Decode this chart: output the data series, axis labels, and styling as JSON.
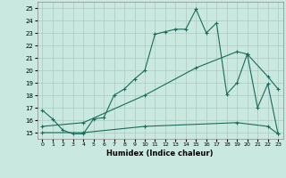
{
  "xlabel": "Humidex (Indice chaleur)",
  "background_color": "#c8e8e0",
  "grid_color": "#b0c8c0",
  "line_color": "#1a6b5a",
  "xlim": [
    -0.5,
    23.5
  ],
  "ylim": [
    14.5,
    25.5
  ],
  "xticks": [
    0,
    1,
    2,
    3,
    4,
    5,
    6,
    7,
    8,
    9,
    10,
    11,
    12,
    13,
    14,
    15,
    16,
    17,
    18,
    19,
    20,
    21,
    22,
    23
  ],
  "yticks": [
    15,
    16,
    17,
    18,
    19,
    20,
    21,
    22,
    23,
    24,
    25
  ],
  "line1_x": [
    0,
    1,
    2,
    3,
    4,
    5,
    6,
    7,
    8,
    9,
    10,
    11,
    12,
    13,
    14,
    15,
    16,
    17,
    18,
    19,
    20,
    21,
    22,
    23
  ],
  "line1_y": [
    16.8,
    16.1,
    15.2,
    14.9,
    14.9,
    16.1,
    16.2,
    18.0,
    18.5,
    19.3,
    20.0,
    22.9,
    23.1,
    23.3,
    23.3,
    24.9,
    23.0,
    23.8,
    18.1,
    19.0,
    21.3,
    17.0,
    18.9,
    14.9
  ],
  "line2_x": [
    0,
    4,
    10,
    15,
    19,
    20,
    22,
    23
  ],
  "line2_y": [
    15.5,
    15.8,
    18.0,
    20.2,
    21.5,
    21.3,
    19.5,
    18.5
  ],
  "line3_x": [
    0,
    4,
    10,
    19,
    22,
    23
  ],
  "line3_y": [
    15.0,
    15.0,
    15.5,
    15.8,
    15.5,
    14.9
  ]
}
